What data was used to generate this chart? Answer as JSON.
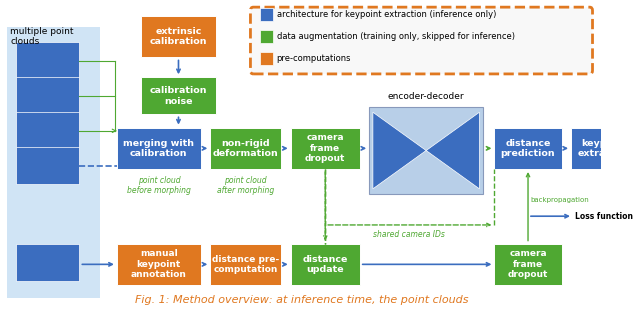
{
  "fig_width": 6.4,
  "fig_height": 3.12,
  "dpi": 100,
  "bg_color": "#ffffff",
  "blue": "#3b6dbf",
  "green": "#4fa832",
  "orange": "#e07820",
  "light_blue_bg": "#d0e4f5",
  "encoder_bg": "#b8cfe8",
  "caption": "Fig. 1: Method overview: at inference time, the point clouds",
  "legend_items": [
    {
      "label": "architecture for keypoint extraction (inference only)",
      "color": "#3b6dbf"
    },
    {
      "label": "data augmentation (training only, skipped for inference)",
      "color": "#4fa832"
    },
    {
      "label": "pre-computations",
      "color": "#e07820"
    }
  ]
}
